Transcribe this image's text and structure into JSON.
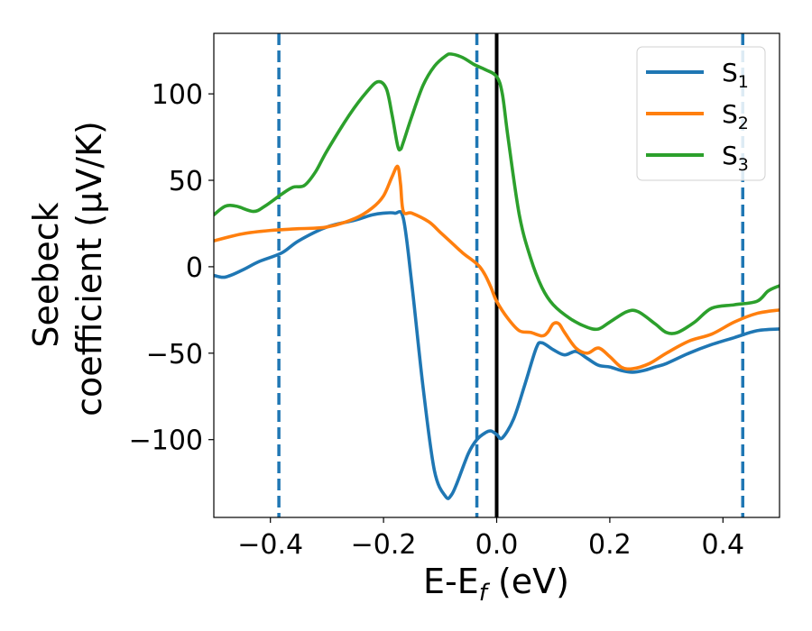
{
  "chart_data": {
    "type": "line",
    "title": "",
    "xlabel": {
      "main": "E-E",
      "sub": "f",
      "tail": " (eV)"
    },
    "ylabel": {
      "line1": "Seebeck",
      "line2": "coefficient  (μV/K)"
    },
    "xlim": [
      -0.5,
      0.5
    ],
    "ylim": [
      -145,
      135
    ],
    "xticks": [
      {
        "value": -0.4,
        "label": "−0.4"
      },
      {
        "value": -0.2,
        "label": "−0.2"
      },
      {
        "value": 0.0,
        "label": "0.0"
      },
      {
        "value": 0.2,
        "label": "0.2"
      },
      {
        "value": 0.4,
        "label": "0.4"
      }
    ],
    "yticks": [
      {
        "value": 100,
        "label": "100"
      },
      {
        "value": 50,
        "label": "50"
      },
      {
        "value": 0,
        "label": "0"
      },
      {
        "value": -50,
        "label": "−50"
      },
      {
        "value": -100,
        "label": "−100"
      }
    ],
    "grid": false,
    "legend_position": "top-right",
    "series": [
      {
        "name": "S",
        "sub": "1",
        "color": "#1f77b4",
        "x": [
          -0.5,
          -0.48,
          -0.45,
          -0.42,
          -0.38,
          -0.35,
          -0.3,
          -0.25,
          -0.22,
          -0.2,
          -0.18,
          -0.165,
          -0.15,
          -0.13,
          -0.11,
          -0.09,
          -0.08,
          -0.07,
          -0.05,
          -0.035,
          -0.02,
          -0.01,
          0.0,
          0.01,
          0.03,
          0.05,
          0.07,
          0.08,
          0.1,
          0.12,
          0.14,
          0.16,
          0.18,
          0.2,
          0.22,
          0.24,
          0.26,
          0.28,
          0.3,
          0.34,
          0.38,
          0.42,
          0.46,
          0.5
        ],
        "y": [
          -5,
          -6,
          -2,
          3,
          8,
          15,
          23,
          27,
          30,
          31,
          31,
          28,
          -10,
          -70,
          -118,
          -133,
          -132,
          -125,
          -108,
          -100,
          -96,
          -95,
          -97,
          -99,
          -88,
          -68,
          -47,
          -44,
          -48,
          -51,
          -49,
          -53,
          -57,
          -58,
          -60,
          -61,
          -60,
          -58,
          -56,
          -50,
          -45,
          -41,
          -37,
          -36
        ]
      },
      {
        "name": "S",
        "sub": "2",
        "color": "#ff7f0e",
        "x": [
          -0.5,
          -0.45,
          -0.4,
          -0.35,
          -0.3,
          -0.25,
          -0.22,
          -0.2,
          -0.185,
          -0.175,
          -0.17,
          -0.165,
          -0.15,
          -0.12,
          -0.1,
          -0.08,
          -0.06,
          -0.04,
          -0.03,
          -0.02,
          -0.01,
          0.0,
          0.02,
          0.04,
          0.06,
          0.08,
          0.09,
          0.1,
          0.11,
          0.12,
          0.14,
          0.16,
          0.18,
          0.2,
          0.22,
          0.24,
          0.27,
          0.3,
          0.34,
          0.38,
          0.42,
          0.46,
          0.5
        ],
        "y": [
          15,
          19,
          21,
          22,
          23,
          28,
          34,
          41,
          52,
          58,
          48,
          32,
          31,
          26,
          20,
          14,
          8,
          3,
          0,
          -5,
          -12,
          -20,
          -30,
          -37,
          -38,
          -40,
          -38,
          -33,
          -33,
          -38,
          -47,
          -50,
          -47,
          -52,
          -58,
          -59,
          -56,
          -50,
          -43,
          -39,
          -32,
          -27,
          -25
        ]
      },
      {
        "name": "S",
        "sub": "3",
        "color": "#2ca02c",
        "x": [
          -0.5,
          -0.48,
          -0.46,
          -0.43,
          -0.41,
          -0.38,
          -0.36,
          -0.34,
          -0.32,
          -0.3,
          -0.26,
          -0.23,
          -0.21,
          -0.195,
          -0.185,
          -0.175,
          -0.17,
          -0.165,
          -0.15,
          -0.13,
          -0.11,
          -0.09,
          -0.08,
          -0.06,
          -0.04,
          -0.02,
          0.0,
          0.01,
          0.02,
          0.04,
          0.06,
          0.08,
          0.1,
          0.13,
          0.16,
          0.18,
          0.2,
          0.23,
          0.25,
          0.28,
          0.3,
          0.32,
          0.35,
          0.38,
          0.42,
          0.46,
          0.48,
          0.5
        ],
        "y": [
          30,
          35,
          35,
          32,
          35,
          42,
          46,
          47,
          55,
          67,
          88,
          101,
          107,
          103,
          88,
          70,
          68,
          72,
          87,
          105,
          116,
          122,
          123,
          121,
          117,
          114,
          110,
          100,
          75,
          30,
          5,
          -12,
          -22,
          -30,
          -35,
          -36,
          -32,
          -26,
          -26,
          -33,
          -38,
          -38,
          -32,
          -24,
          -22,
          -20,
          -14,
          -11
        ]
      }
    ],
    "vlines": [
      {
        "x": -0.385,
        "style": "dashed",
        "color": "#1f77b4"
      },
      {
        "x": -0.035,
        "style": "dashed",
        "color": "#1f77b4"
      },
      {
        "x": 0.435,
        "style": "dashed",
        "color": "#1f77b4"
      },
      {
        "x": 0.0,
        "style": "solid",
        "color": "#000000"
      }
    ]
  }
}
